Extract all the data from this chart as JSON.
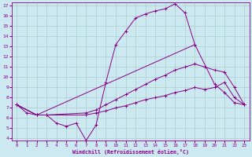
{
  "xlabel": "Windchill (Refroidissement éolien,°C)",
  "line_color": "#880088",
  "bg_color": "#cce8f0",
  "grid_color": "#aacccc",
  "xmin": 0,
  "xmax": 23,
  "ymin": 4,
  "ymax": 17,
  "yticks": [
    4,
    5,
    6,
    7,
    8,
    9,
    10,
    11,
    12,
    13,
    14,
    15,
    16,
    17
  ],
  "xticks": [
    0,
    1,
    2,
    3,
    4,
    5,
    6,
    7,
    8,
    9,
    10,
    11,
    12,
    13,
    14,
    15,
    16,
    17,
    18,
    19,
    20,
    21,
    22,
    23
  ],
  "curve1_x": [
    0,
    1,
    2,
    3,
    4,
    5,
    6,
    7,
    8,
    9,
    10,
    11,
    12,
    13,
    14,
    15,
    16,
    17,
    18
  ],
  "curve1_y": [
    7.3,
    6.5,
    6.3,
    6.3,
    5.5,
    5.2,
    5.5,
    3.8,
    5.3,
    9.5,
    13.2,
    14.5,
    15.8,
    16.2,
    16.5,
    16.7,
    17.2,
    16.3,
    13.2
  ],
  "curve2_x": [
    0,
    2,
    18,
    20,
    21,
    22,
    23
  ],
  "curve2_y": [
    7.3,
    6.3,
    13.2,
    9.3,
    8.5,
    7.5,
    7.3
  ],
  "curve3_x": [
    0,
    2,
    3,
    7,
    8,
    9,
    10,
    11,
    12,
    13,
    14,
    15,
    16,
    17,
    18,
    19,
    20,
    21,
    22,
    23
  ],
  "curve3_y": [
    7.3,
    6.3,
    6.3,
    6.5,
    6.8,
    7.3,
    7.8,
    8.3,
    8.8,
    9.3,
    9.8,
    10.2,
    10.7,
    11.0,
    11.3,
    11.0,
    10.7,
    10.5,
    9.0,
    7.3
  ],
  "curve4_x": [
    0,
    2,
    3,
    7,
    8,
    9,
    10,
    11,
    12,
    13,
    14,
    15,
    16,
    17,
    18,
    19,
    20,
    21,
    22,
    23
  ],
  "curve4_y": [
    7.3,
    6.3,
    6.3,
    6.3,
    6.5,
    6.7,
    7.0,
    7.2,
    7.5,
    7.8,
    8.0,
    8.2,
    8.5,
    8.7,
    9.0,
    8.8,
    9.0,
    9.5,
    8.0,
    7.3
  ]
}
